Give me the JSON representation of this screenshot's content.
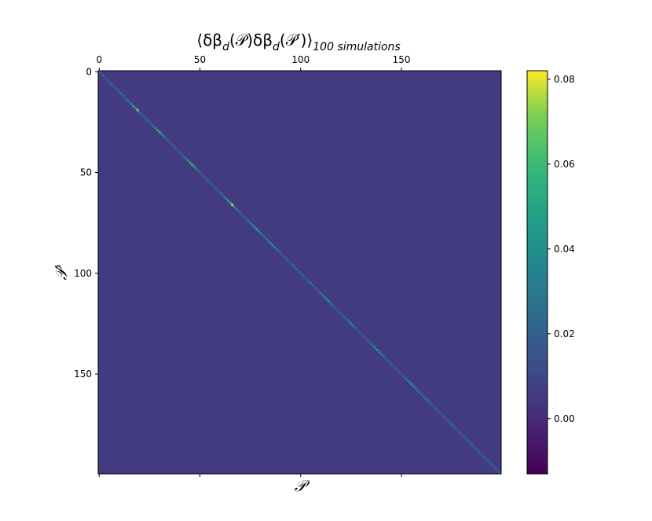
{
  "chart_data": {
    "type": "heatmap",
    "title": [
      "⟨δβ",
      "d",
      "(𝒫)δβ",
      "d",
      "(𝒫′)⟩",
      "100 simulations"
    ],
    "xlabel": "𝒫",
    "ylabel": "𝒫′",
    "xlim": [
      -0.5,
      199.5
    ],
    "ylim": [
      199.5,
      -0.5
    ],
    "xticks": [
      0,
      50,
      100,
      150
    ],
    "yticks": [
      0,
      50,
      100,
      150
    ],
    "colormap": "viridis",
    "clim": [
      -0.013,
      0.082
    ],
    "cticks": [
      {
        "value": 0,
        "label": "0.00"
      },
      {
        "value": 0.02,
        "label": "0.02"
      },
      {
        "value": 0.04,
        "label": "0.04"
      },
      {
        "value": 0.06,
        "label": "0.06"
      },
      {
        "value": 0.08,
        "label": "0.08"
      }
    ],
    "off_diagonal": 0.006,
    "diagonal": [
      0.03,
      0.02,
      0.025,
      0.02,
      0.018,
      0.02,
      0.03,
      0.022,
      0.02,
      0.025,
      0.02,
      0.03,
      0.025,
      0.02,
      0.035,
      0.03,
      0.04,
      0.055,
      0.05,
      0.075,
      0.03,
      0.025,
      0.02,
      0.025,
      0.03,
      0.02,
      0.025,
      0.03,
      0.04,
      0.055,
      0.06,
      0.045,
      0.04,
      0.03,
      0.025,
      0.02,
      0.02,
      0.025,
      0.02,
      0.02,
      0.02,
      0.025,
      0.03,
      0.035,
      0.045,
      0.05,
      0.06,
      0.055,
      0.04,
      0.03,
      0.025,
      0.02,
      0.02,
      0.025,
      0.02,
      0.025,
      0.02,
      0.02,
      0.025,
      0.02,
      0.025,
      0.03,
      0.035,
      0.04,
      0.05,
      0.06,
      0.08,
      0.05,
      0.04,
      0.03,
      0.025,
      0.02,
      0.02,
      0.025,
      0.03,
      0.035,
      0.04,
      0.045,
      0.05,
      0.045,
      0.035,
      0.03,
      0.025,
      0.03,
      0.035,
      0.04,
      0.045,
      0.04,
      0.035,
      0.03,
      0.025,
      0.02,
      0.02,
      0.025,
      0.02,
      0.02,
      0.025,
      0.03,
      0.025,
      0.02,
      0.02,
      0.025,
      0.02,
      0.02,
      0.025,
      0.03,
      0.025,
      0.02,
      0.02,
      0.025,
      0.03,
      0.035,
      0.04,
      0.045,
      0.04,
      0.03,
      0.025,
      0.02,
      0.02,
      0.02,
      0.025,
      0.02,
      0.025,
      0.03,
      0.035,
      0.04,
      0.03,
      0.025,
      0.02,
      0.02,
      0.02,
      0.025,
      0.02,
      0.02,
      0.025,
      0.03,
      0.035,
      0.04,
      0.045,
      0.04,
      0.035,
      0.03,
      0.025,
      0.02,
      0.02,
      0.025,
      0.02,
      0.02,
      0.025,
      0.02,
      0.02,
      0.025,
      0.03,
      0.035,
      0.04,
      0.045,
      0.04,
      0.035,
      0.03,
      0.025,
      0.03,
      0.025,
      0.035,
      0.03,
      0.025,
      0.02,
      0.02,
      0.025,
      0.02,
      0.02,
      0.02,
      0.025,
      0.02,
      0.02,
      0.025,
      0.03,
      0.025,
      0.02,
      0.02,
      0.025,
      0.02,
      0.02,
      0.025,
      0.02,
      0.02,
      0.025,
      0.02,
      0.02,
      0.025,
      0.02,
      0.02,
      0.025,
      0.02,
      0.02,
      0.025,
      0.02,
      0.02,
      0.025,
      0.02,
      0.02
    ]
  }
}
